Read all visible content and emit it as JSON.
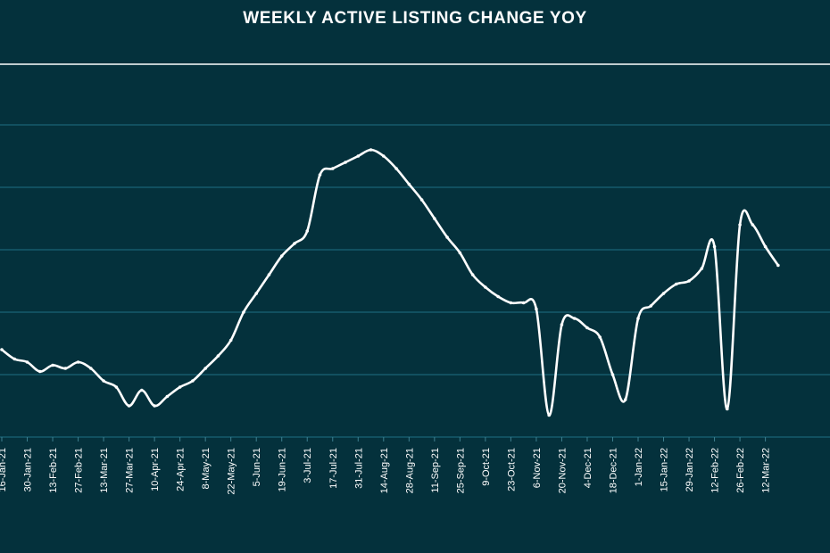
{
  "chart_data": {
    "type": "line",
    "title": "WEEKLY ACTIVE LISTING CHANGE YOY",
    "xlabel": "",
    "ylabel": "",
    "grid": "horizontal",
    "legend": "none",
    "colors": {
      "background": "#04313c",
      "line": "#ffffff",
      "grid": "#1e6f85"
    },
    "ylim": [
      0,
      10
    ],
    "tick_labels": [
      "16-Jan-21",
      "30-Jan-21",
      "13-Feb-21",
      "27-Feb-21",
      "13-Mar-21",
      "27-Mar-21",
      "10-Apr-21",
      "24-Apr-21",
      "8-May-21",
      "22-May-21",
      "5-Jun-21",
      "19-Jun-21",
      "3-Jul-21",
      "17-Jul-21",
      "31-Jul-21",
      "14-Aug-21",
      "28-Aug-21",
      "11-Sep-21",
      "25-Sep-21",
      "9-Oct-21",
      "23-Oct-21",
      "6-Nov-21",
      "20-Nov-21",
      "4-Dec-21",
      "18-Dec-21",
      "1-Jan-22",
      "15-Jan-22",
      "29-Jan-22",
      "12-Feb-22",
      "26-Feb-22",
      "12-Mar-22"
    ],
    "x": [
      "16-Jan-21",
      "23-Jan-21",
      "30-Jan-21",
      "6-Feb-21",
      "13-Feb-21",
      "20-Feb-21",
      "27-Feb-21",
      "6-Mar-21",
      "13-Mar-21",
      "20-Mar-21",
      "27-Mar-21",
      "3-Apr-21",
      "10-Apr-21",
      "17-Apr-21",
      "24-Apr-21",
      "1-May-21",
      "8-May-21",
      "15-May-21",
      "22-May-21",
      "29-May-21",
      "5-Jun-21",
      "12-Jun-21",
      "19-Jun-21",
      "26-Jun-21",
      "3-Jul-21",
      "10-Jul-21",
      "17-Jul-21",
      "24-Jul-21",
      "31-Jul-21",
      "7-Aug-21",
      "14-Aug-21",
      "21-Aug-21",
      "28-Aug-21",
      "4-Sep-21",
      "11-Sep-21",
      "18-Sep-21",
      "25-Sep-21",
      "2-Oct-21",
      "9-Oct-21",
      "16-Oct-21",
      "23-Oct-21",
      "30-Oct-21",
      "6-Nov-21",
      "13-Nov-21",
      "20-Nov-21",
      "27-Nov-21",
      "4-Dec-21",
      "11-Dec-21",
      "18-Dec-21",
      "25-Dec-21",
      "1-Jan-22",
      "8-Jan-22",
      "15-Jan-22",
      "22-Jan-22",
      "29-Jan-22",
      "5-Feb-22",
      "12-Feb-22",
      "19-Feb-22",
      "26-Feb-22",
      "5-Mar-22",
      "12-Mar-22",
      "19-Mar-22"
    ],
    "series": [
      {
        "values": [
          2.8,
          2.5,
          2.4,
          2.1,
          2.3,
          2.2,
          2.4,
          2.2,
          1.8,
          1.6,
          1.0,
          1.5,
          1.0,
          1.3,
          1.6,
          1.8,
          2.2,
          2.6,
          3.1,
          4.0,
          4.6,
          5.2,
          5.8,
          6.2,
          6.6,
          8.4,
          8.6,
          8.8,
          9.0,
          9.2,
          9.0,
          8.6,
          8.1,
          7.6,
          7.0,
          6.4,
          5.9,
          5.2,
          4.8,
          4.5,
          4.3,
          4.3,
          4.1,
          0.7,
          3.6,
          3.8,
          3.5,
          3.2,
          2.0,
          1.2,
          3.8,
          4.2,
          4.6,
          4.9,
          5.0,
          5.4,
          6.1,
          0.9,
          6.8,
          6.8,
          6.1,
          5.5
        ]
      }
    ]
  }
}
